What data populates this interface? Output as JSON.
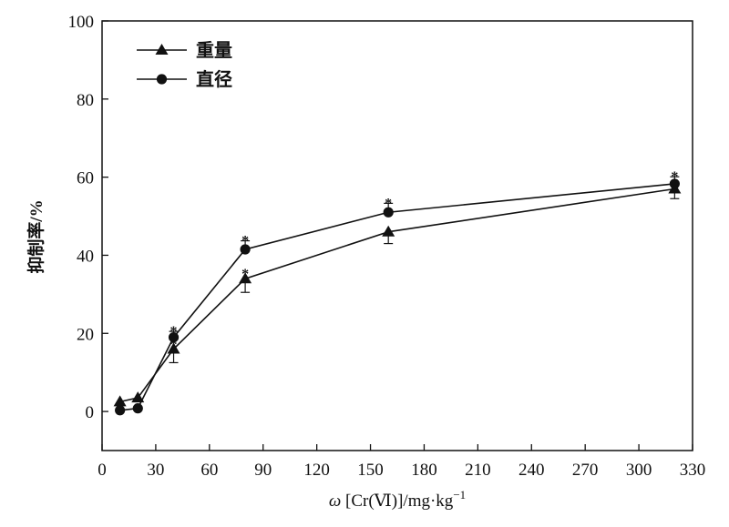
{
  "chart_data": {
    "type": "line",
    "xlabel_prefix": "ω",
    "xlabel_rest": " [Cr(Ⅵ)]/mg·kg",
    "xlabel_sup": "−1",
    "ylabel": "抑制率/%",
    "xlim": [
      0,
      330
    ],
    "ylim": [
      -10,
      100
    ],
    "xticks": [
      0,
      30,
      60,
      90,
      120,
      150,
      180,
      210,
      240,
      270,
      300,
      330
    ],
    "yticks": [
      0,
      20,
      40,
      60,
      80,
      100
    ],
    "legend_position": "top-left",
    "grid": false,
    "x": [
      10,
      20,
      40,
      80,
      160,
      320
    ],
    "series": [
      {
        "name": "重量",
        "marker": "triangle",
        "values": [
          2.5,
          3.5,
          16,
          34,
          46,
          57
        ],
        "error_low": [
          1,
          1,
          3.5,
          3.5,
          3,
          2.5
        ],
        "error_high": [
          0,
          0,
          0,
          0,
          0,
          0
        ],
        "significant": [
          false,
          false,
          true,
          true,
          false,
          true
        ]
      },
      {
        "name": "直径",
        "marker": "circle",
        "values": [
          0.3,
          0.8,
          19,
          41.5,
          51,
          58.3
        ],
        "error_low": [
          0,
          0,
          0,
          0,
          0,
          0
        ],
        "error_high": [
          0,
          0,
          1.5,
          2.2,
          2.3,
          1.8
        ],
        "significant": [
          false,
          false,
          true,
          true,
          true,
          true
        ]
      }
    ],
    "annotation_text": "*"
  }
}
